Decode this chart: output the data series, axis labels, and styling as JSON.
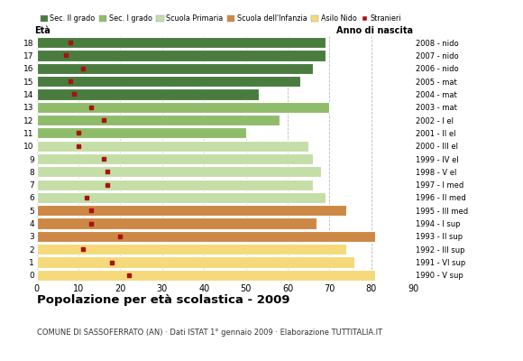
{
  "ages": [
    18,
    17,
    16,
    15,
    14,
    13,
    12,
    11,
    10,
    9,
    8,
    7,
    6,
    5,
    4,
    3,
    2,
    1,
    0
  ],
  "bar_values": [
    69,
    69,
    66,
    63,
    53,
    70,
    58,
    50,
    65,
    66,
    68,
    66,
    69,
    74,
    67,
    81,
    74,
    76,
    81
  ],
  "stranieri": [
    8,
    7,
    11,
    8,
    9,
    13,
    16,
    10,
    10,
    16,
    17,
    17,
    12,
    13,
    13,
    20,
    11,
    18,
    22
  ],
  "right_labels": [
    "1990 - V sup",
    "1991 - VI sup",
    "1992 - III sup",
    "1993 - II sup",
    "1994 - I sup",
    "1995 - III med",
    "1996 - II med",
    "1997 - I med",
    "1998 - V el",
    "1999 - IV el",
    "2000 - III el",
    "2001 - II el",
    "2002 - I el",
    "2003 - mat",
    "2004 - mat",
    "2005 - mat",
    "2006 - nido",
    "2007 - nido",
    "2008 - nido"
  ],
  "bar_colors": [
    "#4a7c3f",
    "#4a7c3f",
    "#4a7c3f",
    "#4a7c3f",
    "#4a7c3f",
    "#8fbc6a",
    "#8fbc6a",
    "#8fbc6a",
    "#c5dea8",
    "#c5dea8",
    "#c5dea8",
    "#c5dea8",
    "#c5dea8",
    "#cc8844",
    "#cc8844",
    "#cc8844",
    "#f5d97a",
    "#f5d97a",
    "#f5d97a"
  ],
  "legend_labels": [
    "Sec. II grado",
    "Sec. I grado",
    "Scuola Primaria",
    "Scuola dell'Infanzia",
    "Asilo Nido",
    "Stranieri"
  ],
  "legend_colors": [
    "#4a7c3f",
    "#8fbc6a",
    "#c5dea8",
    "#cc8844",
    "#f5d97a",
    "#aa1111"
  ],
  "title": "Popolazione per età scolastica - 2009",
  "subtitle": "COMUNE DI SASSOFERRATO (AN) · Dati ISTAT 1° gennaio 2009 · Elaborazione TUTTITALIA.IT",
  "xlabel_age": "Età",
  "xlabel_birth": "Anno di nascita",
  "xlim": [
    0,
    90
  ],
  "xticks": [
    0,
    10,
    20,
    30,
    40,
    50,
    60,
    70,
    80,
    90
  ],
  "stranieri_color": "#aa1111",
  "background_color": "#ffffff",
  "grid_color": "#bbbbbb"
}
